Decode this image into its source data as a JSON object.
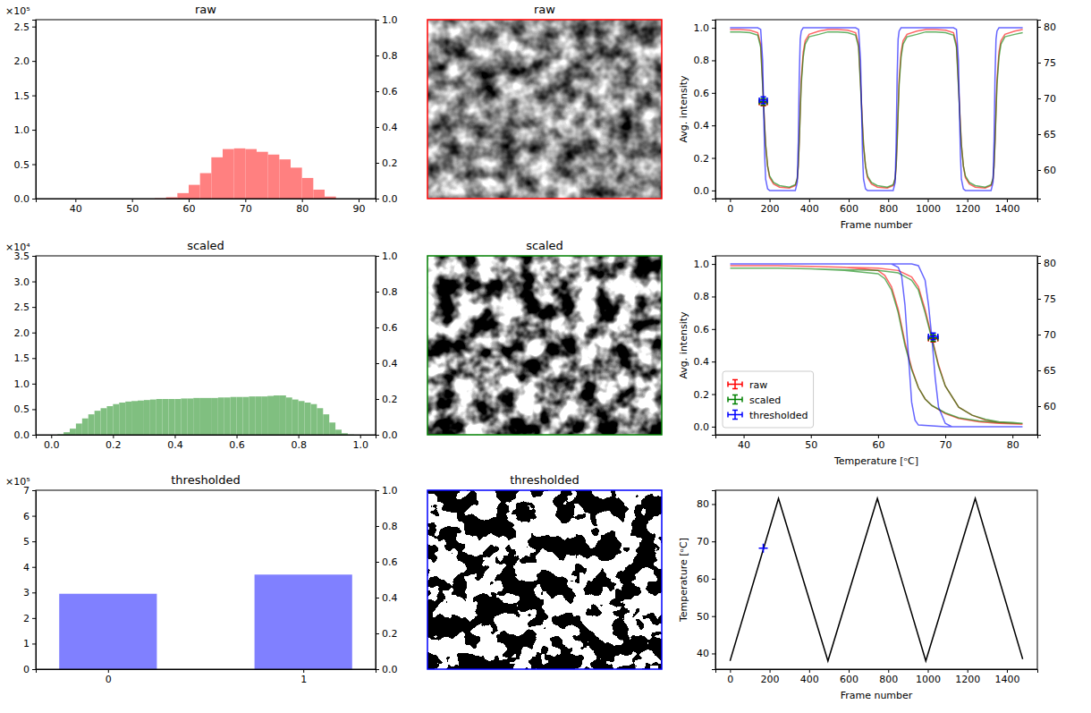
{
  "chart_data": [
    {
      "type": "histogram",
      "title": "raw",
      "annotations": [
        "×10⁵"
      ],
      "bins": [
        54,
        56,
        58,
        60,
        62,
        64,
        66,
        68,
        70,
        72,
        74,
        76,
        78,
        80,
        82,
        84,
        86
      ],
      "values": [
        0.005,
        0.02,
        0.08,
        0.2,
        0.37,
        0.6,
        0.72,
        0.73,
        0.72,
        0.68,
        0.64,
        0.57,
        0.45,
        0.3,
        0.13,
        0.03
      ],
      "color": "#ff8080",
      "xlim": [
        33,
        93
      ],
      "xticks": [
        40,
        50,
        60,
        70,
        80,
        90
      ],
      "ylim": [
        0,
        2.6
      ],
      "yticks": [
        {
          "value": 0,
          "label": "0.0"
        },
        {
          "value": 0.5,
          "label": "0.5"
        },
        {
          "value": 1,
          "label": "1.0"
        },
        {
          "value": 1.5,
          "label": "1.5"
        },
        {
          "value": 2,
          "label": "2.0"
        },
        {
          "value": 2.5,
          "label": "2.5"
        }
      ],
      "y2lim": [
        0,
        1
      ],
      "y2ticks": [
        {
          "value": 0,
          "label": "0.0"
        },
        {
          "value": 0.2,
          "label": "0.2"
        },
        {
          "value": 0.4,
          "label": "0.4"
        },
        {
          "value": 0.6,
          "label": "0.6"
        },
        {
          "value": 0.8,
          "label": "0.8"
        },
        {
          "value": 1,
          "label": "1.0"
        }
      ]
    },
    {
      "type": "image",
      "title": "raw",
      "color": "#ff0000"
    },
    {
      "type": "line",
      "x_label": "Frame number",
      "y_label": "Avg. intensity",
      "x": [
        0,
        50,
        100,
        140,
        155,
        165,
        170,
        175,
        180,
        190,
        200,
        220,
        250,
        300,
        330,
        340,
        345,
        350,
        355,
        360,
        370,
        380,
        400,
        450,
        495,
        545,
        595,
        635,
        650,
        660,
        665,
        670,
        675,
        685,
        695,
        715,
        745,
        795,
        825,
        835,
        840,
        845,
        850,
        855,
        865,
        875,
        895,
        945,
        990,
        1040,
        1090,
        1130,
        1145,
        1155,
        1160,
        1165,
        1170,
        1180,
        1190,
        1210,
        1240,
        1290,
        1320,
        1330,
        1335,
        1340,
        1345,
        1350,
        1360,
        1370,
        1390,
        1440,
        1480
      ],
      "series": [
        {
          "color": "#ff0000",
          "values": [
            0.99,
            0.99,
            0.985,
            0.97,
            0.9,
            0.66,
            0.53,
            0.4,
            0.28,
            0.15,
            0.08,
            0.04,
            0.02,
            0.015,
            0.03,
            0.07,
            0.15,
            0.3,
            0.5,
            0.68,
            0.85,
            0.92,
            0.96,
            0.98,
            0.99,
            0.99,
            0.985,
            0.97,
            0.9,
            0.66,
            0.53,
            0.4,
            0.28,
            0.15,
            0.08,
            0.04,
            0.02,
            0.015,
            0.03,
            0.07,
            0.15,
            0.3,
            0.5,
            0.68,
            0.85,
            0.92,
            0.96,
            0.98,
            0.99,
            0.99,
            0.985,
            0.97,
            0.9,
            0.66,
            0.53,
            0.4,
            0.28,
            0.15,
            0.08,
            0.04,
            0.02,
            0.015,
            0.03,
            0.07,
            0.15,
            0.3,
            0.5,
            0.68,
            0.85,
            0.92,
            0.96,
            0.98,
            0.99
          ],
          "point": {
            "x": 168,
            "y": 0.54,
            "xerr": 20,
            "yerr": 0.02
          }
        },
        {
          "color": "#008000",
          "values": [
            0.975,
            0.975,
            0.97,
            0.955,
            0.88,
            0.64,
            0.515,
            0.39,
            0.28,
            0.15,
            0.09,
            0.05,
            0.03,
            0.02,
            0.035,
            0.075,
            0.15,
            0.3,
            0.48,
            0.65,
            0.82,
            0.9,
            0.945,
            0.96,
            0.975,
            0.975,
            0.97,
            0.955,
            0.88,
            0.64,
            0.515,
            0.39,
            0.28,
            0.15,
            0.09,
            0.05,
            0.03,
            0.02,
            0.035,
            0.075,
            0.15,
            0.3,
            0.48,
            0.65,
            0.82,
            0.9,
            0.945,
            0.96,
            0.975,
            0.975,
            0.97,
            0.955,
            0.88,
            0.64,
            0.515,
            0.39,
            0.28,
            0.15,
            0.09,
            0.05,
            0.03,
            0.02,
            0.035,
            0.075,
            0.15,
            0.3,
            0.48,
            0.65,
            0.82,
            0.9,
            0.945,
            0.96,
            0.97
          ],
          "point": {
            "x": 168,
            "y": 0.545,
            "xerr": 20,
            "yerr": 0.02
          }
        },
        {
          "color": "#0000ff",
          "values": [
            1.0,
            1.0,
            1.0,
            1.0,
            0.99,
            0.8,
            0.5,
            0.22,
            0.07,
            0.01,
            0.0,
            0.0,
            0.0,
            0.0,
            0.0,
            0.05,
            0.3,
            0.7,
            0.93,
            0.98,
            1.0,
            1.0,
            1.0,
            1.0,
            1.0,
            1.0,
            1.0,
            1.0,
            0.99,
            0.8,
            0.5,
            0.22,
            0.07,
            0.01,
            0.0,
            0.0,
            0.0,
            0.0,
            0.0,
            0.05,
            0.3,
            0.7,
            0.93,
            0.98,
            1.0,
            1.0,
            1.0,
            1.0,
            1.0,
            1.0,
            1.0,
            1.0,
            0.99,
            0.8,
            0.5,
            0.22,
            0.07,
            0.01,
            0.0,
            0.0,
            0.0,
            0.0,
            0.0,
            0.05,
            0.3,
            0.7,
            0.93,
            0.98,
            1.0,
            1.0,
            1.0,
            1.0,
            1.0
          ],
          "point": {
            "x": 168,
            "y": 0.555,
            "xerr": 20,
            "yerr": 0.02
          }
        }
      ],
      "xlim": [
        -74,
        1554
      ],
      "xticks": [
        0,
        200,
        400,
        600,
        800,
        1000,
        1200,
        1400
      ],
      "ylim": [
        -0.05,
        1.05
      ],
      "yticks": [
        {
          "value": 0,
          "label": "0.0"
        },
        {
          "value": 0.2,
          "label": "0.2"
        },
        {
          "value": 0.4,
          "label": "0.4"
        },
        {
          "value": 0.6,
          "label": "0.6"
        },
        {
          "value": 0.8,
          "label": "0.8"
        },
        {
          "value": 1,
          "label": "1.0"
        }
      ],
      "y2lim": [
        56,
        81
      ],
      "y2ticks": [
        60,
        65,
        70,
        75,
        80
      ]
    },
    {
      "type": "histogram",
      "title": "scaled",
      "annotations": [
        "×10⁴"
      ],
      "bins": [
        0,
        0.02,
        0.04,
        0.06,
        0.08,
        0.1,
        0.12,
        0.14,
        0.16,
        0.18,
        0.2,
        0.22,
        0.24,
        0.26,
        0.28,
        0.3,
        0.32,
        0.34,
        0.36,
        0.38,
        0.4,
        0.42,
        0.44,
        0.46,
        0.48,
        0.5,
        0.52,
        0.54,
        0.56,
        0.58,
        0.6,
        0.62,
        0.64,
        0.66,
        0.68,
        0.7,
        0.72,
        0.74,
        0.76,
        0.78,
        0.8,
        0.82,
        0.84,
        0.86,
        0.88,
        0.9,
        0.92,
        0.94,
        0.96,
        0.98,
        1.0
      ],
      "values": [
        0.0,
        0.01,
        0.05,
        0.12,
        0.22,
        0.32,
        0.4,
        0.47,
        0.52,
        0.56,
        0.6,
        0.63,
        0.65,
        0.66,
        0.67,
        0.68,
        0.69,
        0.7,
        0.7,
        0.7,
        0.7,
        0.71,
        0.71,
        0.72,
        0.72,
        0.72,
        0.72,
        0.73,
        0.73,
        0.74,
        0.74,
        0.74,
        0.75,
        0.75,
        0.75,
        0.76,
        0.77,
        0.77,
        0.73,
        0.69,
        0.66,
        0.63,
        0.6,
        0.52,
        0.4,
        0.24,
        0.1,
        0.03,
        0.005,
        0.0
      ],
      "color": "#80bf80",
      "xlim": [
        -0.05,
        1.05
      ],
      "xticks": [
        {
          "value": 0,
          "label": "0.0"
        },
        {
          "value": 0.2,
          "label": "0.2"
        },
        {
          "value": 0.4,
          "label": "0.4"
        },
        {
          "value": 0.6,
          "label": "0.6"
        },
        {
          "value": 0.8,
          "label": "0.8"
        },
        {
          "value": 1,
          "label": "1.0"
        }
      ],
      "ylim": [
        0,
        3.5
      ],
      "yticks": [
        {
          "value": 0,
          "label": "0.0"
        },
        {
          "value": 0.5,
          "label": "0.5"
        },
        {
          "value": 1,
          "label": "1.0"
        },
        {
          "value": 1.5,
          "label": "1.5"
        },
        {
          "value": 2,
          "label": "2.0"
        },
        {
          "value": 2.5,
          "label": "2.5"
        },
        {
          "value": 3,
          "label": "3.0"
        },
        {
          "value": 3.5,
          "label": "3.5"
        }
      ],
      "y2lim": [
        0,
        1
      ],
      "y2ticks": [
        {
          "value": 0,
          "label": "0.0"
        },
        {
          "value": 0.2,
          "label": "0.2"
        },
        {
          "value": 0.4,
          "label": "0.4"
        },
        {
          "value": 0.6,
          "label": "0.6"
        },
        {
          "value": 0.8,
          "label": "0.8"
        },
        {
          "value": 1,
          "label": "1.0"
        }
      ]
    },
    {
      "type": "image",
      "title": "scaled",
      "color": "#008000"
    },
    {
      "type": "line",
      "x_label": "Temperature [ᵒC]",
      "y_label": "Avg. intensity",
      "legend": "lower left",
      "series": [
        {
          "name": "raw",
          "color": "#ff0000",
          "x": [
            38,
            45,
            50,
            55,
            60,
            63,
            65,
            66,
            67,
            68,
            69,
            70,
            72,
            74,
            76,
            78,
            80,
            81.5,
            80,
            78,
            75,
            72,
            70,
            68,
            67,
            66,
            65,
            64,
            63,
            62,
            61,
            60,
            55,
            50,
            45,
            38
          ],
          "values": [
            0.99,
            0.99,
            0.985,
            0.98,
            0.975,
            0.96,
            0.92,
            0.86,
            0.72,
            0.55,
            0.38,
            0.25,
            0.12,
            0.07,
            0.04,
            0.025,
            0.02,
            0.015,
            0.017,
            0.02,
            0.03,
            0.05,
            0.08,
            0.13,
            0.17,
            0.24,
            0.36,
            0.52,
            0.72,
            0.86,
            0.93,
            0.96,
            0.98,
            0.985,
            0.99,
            0.99
          ],
          "point": {
            "x": 68.2,
            "y": 0.54,
            "xerr": 0.7,
            "yerr": 0.02
          }
        },
        {
          "name": "scaled",
          "color": "#008000",
          "x": [
            38,
            45,
            50,
            55,
            60,
            63,
            65,
            66,
            67,
            68,
            69,
            70,
            72,
            74,
            76,
            78,
            80,
            81.5,
            80,
            78,
            75,
            72,
            70,
            68,
            67,
            66,
            65,
            64,
            63,
            62,
            61,
            60,
            55,
            50,
            45,
            38
          ],
          "values": [
            0.975,
            0.975,
            0.97,
            0.965,
            0.96,
            0.945,
            0.9,
            0.84,
            0.7,
            0.54,
            0.37,
            0.25,
            0.12,
            0.07,
            0.045,
            0.03,
            0.025,
            0.02,
            0.022,
            0.025,
            0.035,
            0.055,
            0.085,
            0.13,
            0.17,
            0.24,
            0.35,
            0.5,
            0.7,
            0.84,
            0.91,
            0.94,
            0.96,
            0.97,
            0.975,
            0.975
          ],
          "point": {
            "x": 68.2,
            "y": 0.545,
            "xerr": 0.7,
            "yerr": 0.02
          }
        },
        {
          "name": "thresholded",
          "color": "#0000ff",
          "x": [
            38,
            55,
            62,
            65,
            66,
            67,
            67.5,
            68,
            68.5,
            69,
            70,
            71,
            81.5,
            70,
            66,
            65.5,
            65,
            64.5,
            64,
            63.5,
            63,
            62,
            55,
            38
          ],
          "values": [
            1,
            1,
            1,
            1,
            0.99,
            0.9,
            0.75,
            0.55,
            0.3,
            0.12,
            0.02,
            0,
            0,
            0,
            0.01,
            0.04,
            0.15,
            0.45,
            0.75,
            0.93,
            0.98,
            1,
            1,
            1
          ],
          "point": {
            "x": 68.2,
            "y": 0.555,
            "xerr": 0.7,
            "yerr": 0.02
          }
        }
      ],
      "xlim": [
        35.8,
        83.7
      ],
      "xticks": [
        40,
        50,
        60,
        70,
        80
      ],
      "ylim": [
        -0.05,
        1.05
      ],
      "yticks": [
        {
          "value": 0,
          "label": "0.0"
        },
        {
          "value": 0.2,
          "label": "0.2"
        },
        {
          "value": 0.4,
          "label": "0.4"
        },
        {
          "value": 0.6,
          "label": "0.6"
        },
        {
          "value": 0.8,
          "label": "0.8"
        },
        {
          "value": 1,
          "label": "1.0"
        }
      ],
      "y2lim": [
        56,
        81
      ],
      "y2ticks": [
        60,
        65,
        70,
        75,
        80
      ]
    },
    {
      "type": "bar",
      "title": "thresholded",
      "annotations": [
        "×10⁵"
      ],
      "x": [
        0,
        1
      ],
      "values": [
        2.95,
        3.7
      ],
      "color": "#8080ff",
      "xlim": [
        -0.37,
        1.37
      ],
      "xticks": [
        0,
        1
      ],
      "ylim": [
        0,
        7
      ],
      "yticks": [
        0,
        1,
        2,
        3,
        4,
        5,
        6,
        7
      ],
      "y2lim": [
        0,
        1
      ],
      "y2ticks": [
        {
          "value": 0,
          "label": "0.0"
        },
        {
          "value": 0.2,
          "label": "0.2"
        },
        {
          "value": 0.4,
          "label": "0.4"
        },
        {
          "value": 0.6,
          "label": "0.6"
        },
        {
          "value": 0.8,
          "label": "0.8"
        },
        {
          "value": 1,
          "label": "1.0"
        }
      ]
    },
    {
      "type": "image",
      "title": "thresholded",
      "color": "#0000ff"
    },
    {
      "type": "line",
      "x_label": "Frame number",
      "y_label": "Temperature [ᵒC]",
      "series": [
        {
          "color": "#000000",
          "x": [
            0,
            245,
            495,
            745,
            990,
            1240,
            1480
          ],
          "values": [
            38,
            81.5,
            38,
            81.5,
            38,
            81.5,
            38.5
          ]
        },
        {
          "type": "scatter",
          "marker": "plus",
          "color": "#0000ff",
          "x": [
            168
          ],
          "values": [
            68.2
          ]
        }
      ],
      "xlim": [
        -74,
        1554
      ],
      "xticks": [
        0,
        200,
        400,
        600,
        800,
        1000,
        1200,
        1400
      ],
      "ylim": [
        35.8,
        83.7
      ],
      "yticks": [
        40,
        50,
        60,
        70,
        80
      ]
    }
  ]
}
